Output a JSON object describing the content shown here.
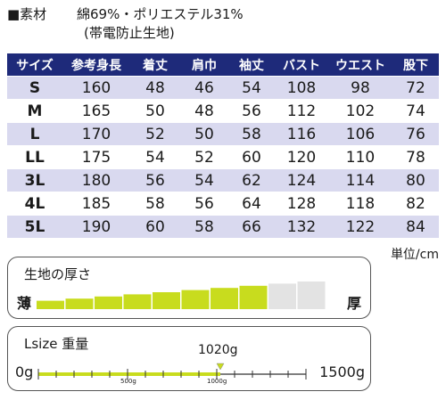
{
  "material": {
    "label": "■素材",
    "composition": "綿69%・ポリエステル31%",
    "note": "(帯電防止生地)"
  },
  "size_table": {
    "headers": [
      "サイズ",
      "参考身長",
      "着丈",
      "肩巾",
      "袖丈",
      "バスト",
      "ウエスト",
      "股下"
    ],
    "rows": [
      [
        "S",
        "160",
        "48",
        "46",
        "54",
        "108",
        "98",
        "72"
      ],
      [
        "M",
        "165",
        "50",
        "48",
        "56",
        "112",
        "102",
        "74"
      ],
      [
        "L",
        "170",
        "52",
        "50",
        "58",
        "116",
        "106",
        "76"
      ],
      [
        "LL",
        "175",
        "54",
        "52",
        "60",
        "120",
        "110",
        "78"
      ],
      [
        "3L",
        "180",
        "56",
        "54",
        "62",
        "124",
        "114",
        "80"
      ],
      [
        "4L",
        "185",
        "58",
        "56",
        "64",
        "128",
        "118",
        "82"
      ],
      [
        "5L",
        "190",
        "60",
        "58",
        "66",
        "132",
        "122",
        "84"
      ]
    ],
    "unit": "単位/cm"
  },
  "thickness": {
    "title": "生地の厚さ",
    "thin_label": "薄",
    "thick_label": "厚",
    "level": 8,
    "total_levels": 10,
    "active_color": "#c8dc1e",
    "inactive_color": "#e3e3e3"
  },
  "weight": {
    "title": "Lsize 重量",
    "min_label": "0g",
    "max_label": "1500g",
    "value_label": "1020g",
    "value": 1020,
    "min": 0,
    "max": 1500,
    "mid_tick_label": "500g",
    "tick_1000_label": "1000g",
    "accent_color": "#c8dc1e"
  }
}
